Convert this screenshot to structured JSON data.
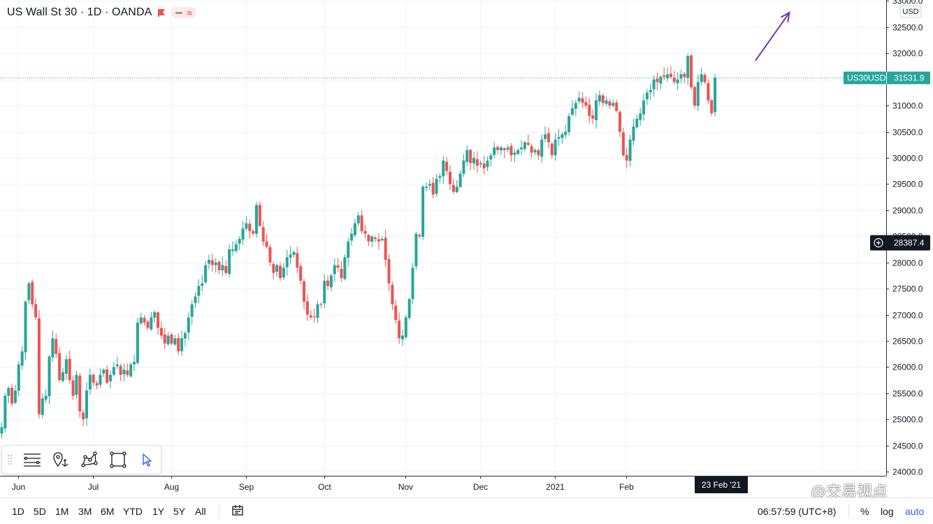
{
  "header": {
    "title": "US Wall St 30 · 1D · OANDA"
  },
  "chart_data": {
    "type": "candlestick",
    "symbol": "US30USD",
    "currency": "USD",
    "last_price": 31531.9,
    "last_price_label": "31531.9",
    "crosshair_price": 28387.4,
    "crosshair_label": "28387.4",
    "y_ticks": [
      24000,
      24500,
      25000,
      25500,
      26000,
      26500,
      27000,
      27500,
      28000,
      28500,
      29000,
      29500,
      30000,
      30500,
      31000,
      31500,
      32000,
      32500,
      33000
    ],
    "y_tick_labels": [
      "24000.0",
      "24500.0",
      "25000.0",
      "25500.0",
      "26000.0",
      "26500.0",
      "27000.0",
      "27500.0",
      "28000.0",
      "28500.0",
      "29000.0",
      "29500.0",
      "30000.0",
      "30500.0",
      "31000.0",
      "31500.0",
      "32000.0",
      "32500.0",
      "33000.0"
    ],
    "ylim": [
      23920,
      33020
    ],
    "x_ticks": [
      "Jun",
      "Jul",
      "Aug",
      "Sep",
      "Oct",
      "Nov",
      "Dec",
      "2021",
      "Feb"
    ],
    "x_highlight": "23 Feb '21",
    "series_closes": [
      24850,
      25450,
      25600,
      25300,
      25550,
      26050,
      26300,
      27250,
      27600,
      27200,
      26950,
      25100,
      25400,
      25450,
      26200,
      26550,
      26250,
      25750,
      25900,
      26150,
      25750,
      25450,
      25850,
      25150,
      25000,
      25550,
      25850,
      25700,
      25650,
      25850,
      25950,
      25700,
      25850,
      26000,
      26050,
      25850,
      25950,
      25850,
      26050,
      26100,
      26850,
      26950,
      26850,
      26750,
      26950,
      27050,
      26750,
      26600,
      26450,
      26600,
      26450,
      26550,
      26300,
      26550,
      26650,
      26950,
      27200,
      27350,
      27550,
      27600,
      27950,
      28050,
      27950,
      28000,
      27850,
      27950,
      27800,
      28250,
      28250,
      28350,
      28450,
      28650,
      28750,
      28600,
      28550,
      29100,
      28700,
      28400,
      28300,
      28000,
      27800,
      27950,
      27700,
      27900,
      28100,
      28150,
      28200,
      27900,
      27650,
      27250,
      27000,
      26950,
      26950,
      27200,
      27200,
      27650,
      27550,
      27750,
      27950,
      27900,
      27700,
      28100,
      28400,
      28550,
      28750,
      28900,
      28600,
      28550,
      28400,
      28500,
      28450,
      28400,
      28450,
      28050,
      27600,
      27200,
      26900,
      26550,
      26600,
      26950,
      27300,
      27900,
      28550,
      28500,
      29450,
      29450,
      29500,
      29300,
      29600,
      29650,
      29950,
      29750,
      29500,
      29350,
      29450,
      29700,
      29950,
      30150,
      29900,
      30000,
      29850,
      29900,
      29800,
      29950,
      30050,
      30200,
      30150,
      30200,
      30150,
      30200,
      30050,
      30100,
      30150,
      30200,
      30300,
      30250,
      30100,
      30150,
      30050,
      30350,
      30450,
      30300,
      30050,
      30350,
      30400,
      30450,
      30500,
      30800,
      30950,
      31050,
      31150,
      31050,
      31000,
      30800,
      30750,
      31100,
      31200,
      31050,
      31100,
      31000,
      31050,
      30900,
      30500,
      30050,
      29950,
      30350,
      30600,
      30750,
      30850,
      31100,
      31250,
      31300,
      31500,
      31450,
      31550,
      31550,
      31600,
      31550,
      31450,
      31500,
      31600,
      31550,
      31950,
      31350,
      31000,
      31450,
      31600,
      31450,
      31100,
      30850,
      31531.9
    ],
    "arrow": {
      "from": {
        "t": 222,
        "p": 31860
      },
      "to": {
        "t": 232,
        "p": 32780
      }
    },
    "up_color": "#26a69a",
    "down_color": "#ef5350",
    "grid": true
  },
  "toolbar": {
    "items": [
      {
        "name": "toolbar-grip-icon"
      },
      {
        "name": "lines-tool-icon"
      },
      {
        "name": "pin-anchor-icon"
      },
      {
        "name": "nodes-tool-icon"
      },
      {
        "name": "rectangle-tool-icon"
      },
      {
        "name": "cursor-icon"
      }
    ]
  },
  "bottom": {
    "periods": [
      "1D",
      "5D",
      "1M",
      "3M",
      "6M",
      "YTD",
      "1Y",
      "5Y",
      "All"
    ],
    "clock": "06:57:59 (UTC+8)",
    "percent": "%",
    "log": "log",
    "auto": "auto",
    "watermark": "@交易视点"
  },
  "colors": {
    "accent": "#2962ff",
    "price_label_bg": "#26a69a",
    "crosshair_label_bg": "#131722",
    "arrow": "#673ab7"
  }
}
